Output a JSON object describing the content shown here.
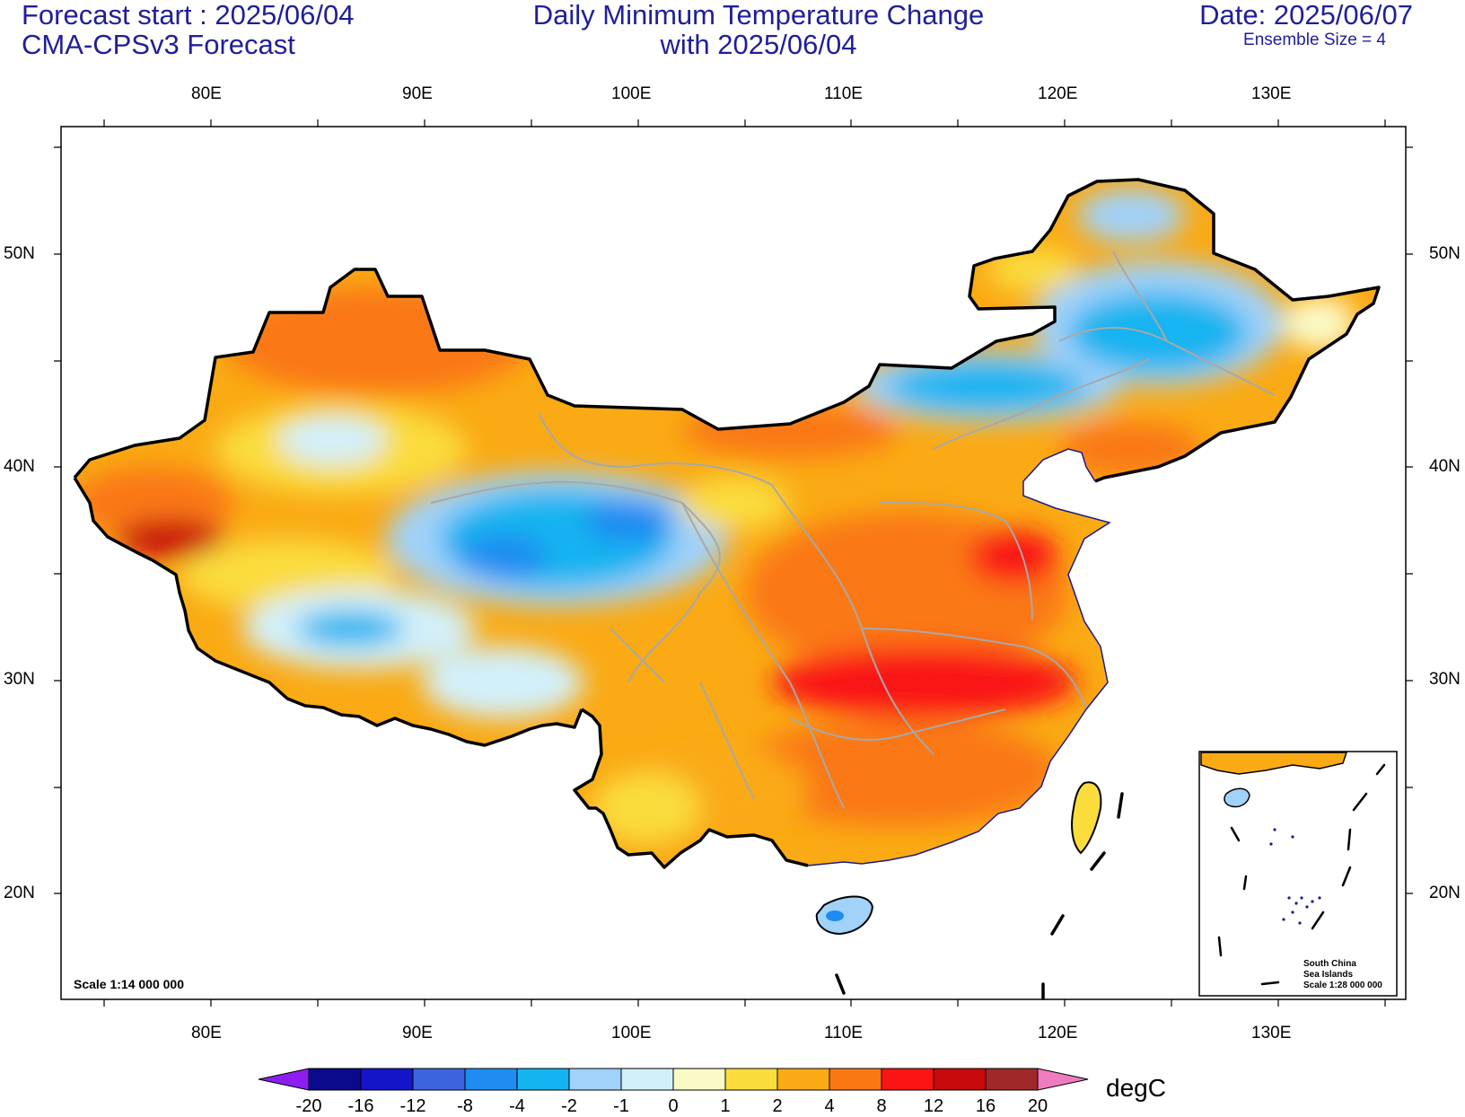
{
  "header": {
    "left_line1": "Forecast start : 2025/06/04",
    "left_line2": "CMA-CPSv3 Forecast",
    "center_line1": "Daily Minimum Temperature Change",
    "center_line2": "with 2025/06/04",
    "right_line1": "Date: 2025/06/07",
    "right_line2": "Ensemble Size = 4"
  },
  "axes": {
    "lon_labels": [
      "80E",
      "90E",
      "100E",
      "110E",
      "120E",
      "130E"
    ],
    "lat_labels": [
      "50N",
      "40N",
      "30N",
      "20N"
    ]
  },
  "scale_note": "Scale 1:14 000 000",
  "inset": {
    "line1": "South China",
    "line2": "Sea Islands",
    "line3": "Scale 1:28 000 000"
  },
  "colorbar": {
    "unit": "degC",
    "labels": [
      "-20",
      "-16",
      "-12",
      "-8",
      "-4",
      "-2",
      "-1",
      "0",
      "1",
      "2",
      "4",
      "8",
      "12",
      "16",
      "20"
    ],
    "colors": [
      "#0a0a8c",
      "#1414c8",
      "#3c64dc",
      "#1e8cf0",
      "#14b4f0",
      "#a0d2fa",
      "#d2f0fa",
      "#fafac8",
      "#fadc3c",
      "#faaa14",
      "#fa7814",
      "#fa1414",
      "#c80a0a",
      "#a02828"
    ],
    "under_color": "#8c1ef0",
    "over_color": "#f07cc0"
  },
  "colors": {
    "title": "#1f1f99",
    "border": "#000000",
    "province": "#a8a8a8"
  }
}
